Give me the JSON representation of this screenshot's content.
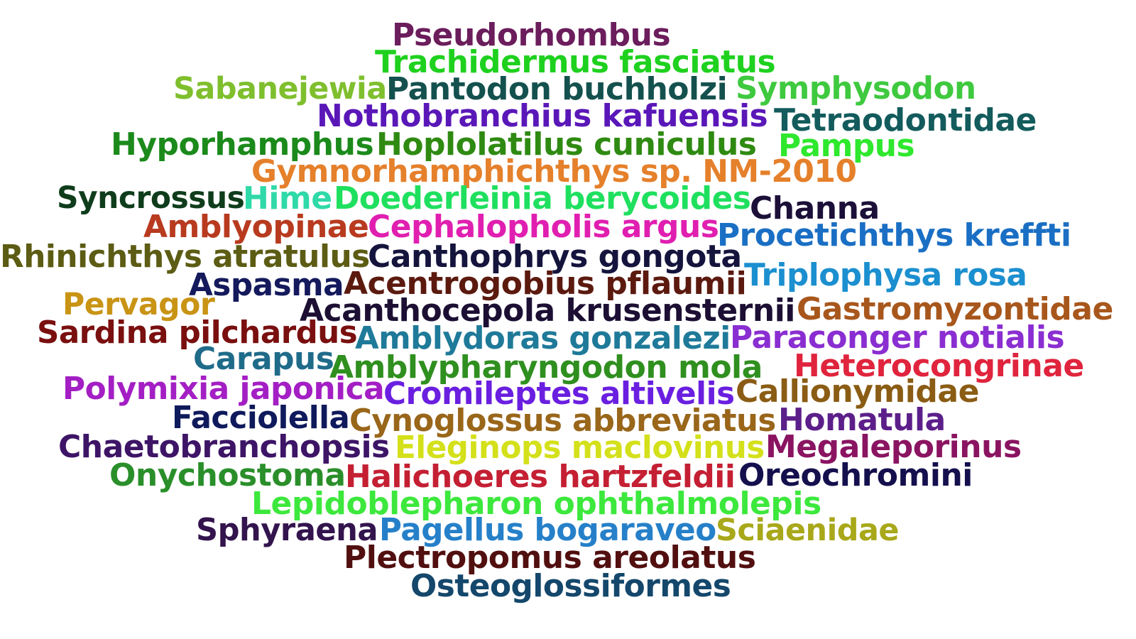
{
  "words": [
    {
      "text": "Pseudorhombus",
      "color": "#6b1d5c"
    },
    {
      "text": "Trachidermus fasciatus",
      "color": "#1fd11f"
    },
    {
      "text": "Sabanejewia",
      "color": "#7fbf2e"
    },
    {
      "text": "Pantodon buchholzi",
      "color": "#14514e"
    },
    {
      "text": "Symphysodon",
      "color": "#3fc93f"
    },
    {
      "text": "Nothobranchius kafuensis",
      "color": "#5a17b8"
    },
    {
      "text": "Tetraodontidae",
      "color": "#135b5c"
    },
    {
      "text": "Hyporhamphus",
      "color": "#1b8a1b"
    },
    {
      "text": "Hoplolatilus cuniculus",
      "color": "#2f8a12"
    },
    {
      "text": "Pampus",
      "color": "#2ee82e"
    },
    {
      "text": "Gymnorhamphichthys sp. NM-2010",
      "color": "#e5802b"
    },
    {
      "text": "Syncrossus",
      "color": "#0f3d1c"
    },
    {
      "text": "Hime",
      "color": "#2fd9a8"
    },
    {
      "text": "Doederleinia berycoides",
      "color": "#1fe05e"
    },
    {
      "text": "Channa",
      "color": "#1c0f38"
    },
    {
      "text": "Amblyopinae",
      "color": "#b83a1f"
    },
    {
      "text": "Cephalopholis argus",
      "color": "#e01fb0"
    },
    {
      "text": "Procetichthys kreffti",
      "color": "#1a6fc4"
    },
    {
      "text": "Rhinichthys atratulus",
      "color": "#5c5c14"
    },
    {
      "text": "Canthophrys gongota",
      "color": "#14143d"
    },
    {
      "text": "Triplophysa rosa",
      "color": "#1b8fcf"
    },
    {
      "text": "Aspasma",
      "color": "#141a5c"
    },
    {
      "text": "Acentrogobius pflaumii",
      "color": "#5c1a0f"
    },
    {
      "text": "Pervagor",
      "color": "#c99414"
    },
    {
      "text": "Acanthocepola krusensternii",
      "color": "#1c0f33"
    },
    {
      "text": "Gastromyzontidae",
      "color": "#a8571c"
    },
    {
      "text": "Sardina pilchardus",
      "color": "#7a0f0f"
    },
    {
      "text": "Amblydoras gonzalezi",
      "color": "#1f7a99"
    },
    {
      "text": "Paraconger notialis",
      "color": "#8a2ed1"
    },
    {
      "text": "Carapus",
      "color": "#1f6b8a"
    },
    {
      "text": "Amblypharyngodon mola",
      "color": "#2f8f1f"
    },
    {
      "text": "Heterocongrinae",
      "color": "#e0243d"
    },
    {
      "text": "Polymixia japonica",
      "color": "#a31fc4"
    },
    {
      "text": "Cromileptes altivelis",
      "color": "#6a1fe0"
    },
    {
      "text": "Callionymidae",
      "color": "#8a5c14"
    },
    {
      "text": "Facciolella",
      "color": "#0f1a5c"
    },
    {
      "text": "Cynoglossus abbreviatus",
      "color": "#99661a"
    },
    {
      "text": "Homatula",
      "color": "#5c1f8a"
    },
    {
      "text": "Chaetobranchopsis",
      "color": "#3d1466"
    },
    {
      "text": "Eleginops maclovinus",
      "color": "#d4e01a"
    },
    {
      "text": "Megaleporinus",
      "color": "#8a1461"
    },
    {
      "text": "Onychostoma",
      "color": "#2a8f2a"
    },
    {
      "text": "Halichoeres hartzfeldii",
      "color": "#c41f33"
    },
    {
      "text": "Oreochromini",
      "color": "#140f4d"
    },
    {
      "text": "Lepidoblepharon ophthalmolepis",
      "color": "#3de83d"
    },
    {
      "text": "Sphyraena",
      "color": "#33144d"
    },
    {
      "text": "Pagellus bogaraveo",
      "color": "#2680c9"
    },
    {
      "text": "Sciaenidae",
      "color": "#a8a81a"
    },
    {
      "text": "Plectropomus areolatus",
      "color": "#520f0f"
    },
    {
      "text": "Osteoglossiformes",
      "color": "#14476b"
    }
  ]
}
